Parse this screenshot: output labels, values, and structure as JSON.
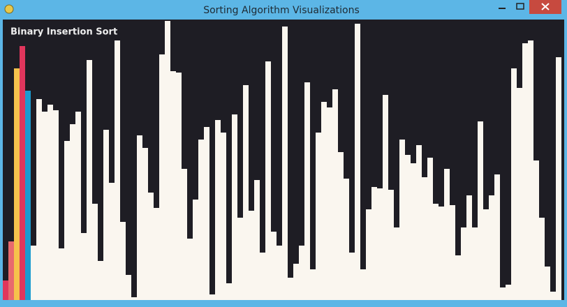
{
  "window": {
    "title": "Sorting Algorithm Visualizations"
  },
  "chart_data": {
    "type": "bar",
    "title": "Binary Insertion Sort",
    "values": [
      28,
      84,
      332,
      364,
      300,
      78,
      288,
      270,
      280,
      272,
      74,
      228,
      252,
      270,
      96,
      344,
      138,
      56,
      244,
      168,
      372,
      112,
      36,
      4,
      236,
      218,
      154,
      132,
      352,
      400,
      328,
      326,
      188,
      88,
      144,
      230,
      248,
      8,
      258,
      240,
      24,
      266,
      118,
      308,
      128,
      172,
      68,
      342,
      98,
      78,
      392,
      32,
      52,
      78,
      312,
      44,
      240,
      284,
      276,
      302,
      212,
      174,
      68,
      396,
      44,
      130,
      162,
      160,
      294,
      158,
      104,
      230,
      208,
      196,
      222,
      176,
      204,
      138,
      134,
      188,
      136,
      64,
      104,
      150,
      104,
      256,
      130,
      150,
      180,
      18,
      22,
      332,
      304,
      368,
      372,
      200,
      118,
      48,
      12,
      348
    ],
    "color": "#faf6ef",
    "highlight_colors": [
      "#e0365c",
      "#e86a6e",
      "#f6c24c",
      "#e0365c",
      "#1b9bd0"
    ],
    "background": "#1e1d24",
    "ylim": [
      0,
      402
    ]
  }
}
